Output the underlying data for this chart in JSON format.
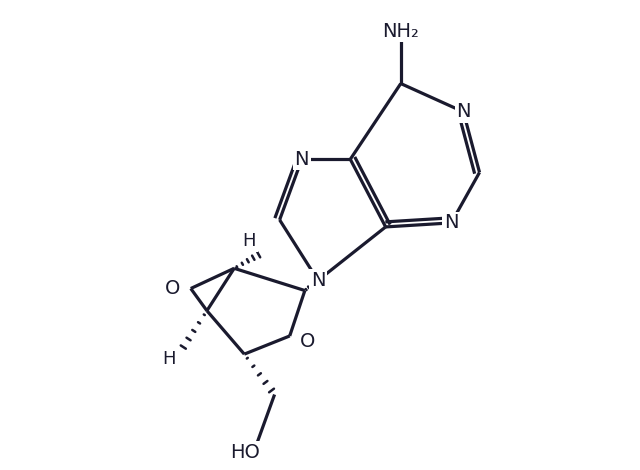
{
  "background_color": "#ffffff",
  "line_color": "#1a1a2e",
  "line_width": 2.3,
  "font_size": 14,
  "figsize": [
    6.4,
    4.7
  ],
  "dpi": 100,
  "NH2_label": "NH₂",
  "HO_label": "HO",
  "H_label": "H",
  "N_label": "N",
  "O_label": "O"
}
